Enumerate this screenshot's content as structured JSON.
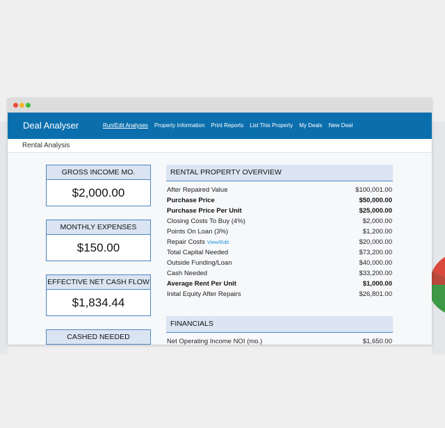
{
  "window": {
    "brand": "Deal Analyser",
    "nav": [
      {
        "label": "Run/Edit Analyses",
        "active": true
      },
      {
        "label": "Property Information",
        "active": false
      },
      {
        "label": "Print Reports",
        "active": false
      },
      {
        "label": "List This Property",
        "active": false
      },
      {
        "label": "My Deals",
        "active": false
      },
      {
        "label": "New Deal",
        "active": false
      }
    ],
    "page_title": "Rental Analysis",
    "cards": [
      {
        "title": "GROSS INCOME MO.",
        "value": "$2,000.00"
      },
      {
        "title": "MONTHLY EXPENSES",
        "value": "$150.00"
      },
      {
        "title": "EFFECTIVE NET CASH FLOW",
        "value": "$1,834.44"
      },
      {
        "title": "CASHED NEEDED",
        "value": ""
      }
    ],
    "sections": [
      {
        "title": "RENTAL PROPERTY OVERVIEW",
        "rows": [
          {
            "label": "After Repaired Value",
            "value": "$100,001.00",
            "bold": false
          },
          {
            "label": "Purchase Price",
            "value": "$50,000.00",
            "bold": true
          },
          {
            "label": "Purchase Price Per Unit",
            "value": "$25,000.00",
            "bold": true
          },
          {
            "label": "Closing Costs To Buy (4%)",
            "value": "$2,000.00",
            "bold": false
          },
          {
            "label": "Points On Loan (3%)",
            "value": "$1,200.00",
            "bold": false
          },
          {
            "label": "Repair Costs",
            "link": "View/Edit",
            "value": "$20,000.00",
            "bold": false
          },
          {
            "label": "Total Capital Needed",
            "value": "$73,200.00",
            "bold": false
          },
          {
            "label": "Outside Funding/Loan",
            "value": "$40,000.00",
            "bold": false
          },
          {
            "label": "Cash Needed",
            "value": "$33,200.00",
            "bold": false
          },
          {
            "label": "Average Rent Per Unit",
            "value": "$1,000.00",
            "bold": true
          },
          {
            "label": "Inital Equity After Repairs",
            "value": "$26,801.00",
            "bold": false
          }
        ]
      },
      {
        "title": "FINANCIALS",
        "rows": [
          {
            "label": "Net Operating Income NOI (mo.)",
            "value": "$1,650.00",
            "bold": false
          }
        ]
      }
    ]
  }
}
